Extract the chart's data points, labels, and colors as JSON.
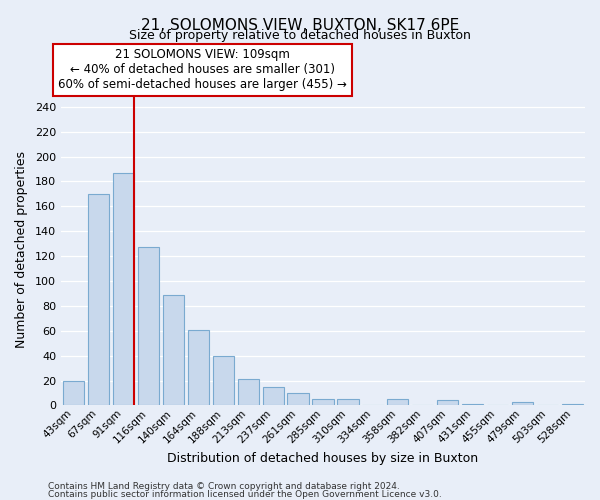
{
  "title": "21, SOLOMONS VIEW, BUXTON, SK17 6PE",
  "subtitle": "Size of property relative to detached houses in Buxton",
  "xlabel": "Distribution of detached houses by size in Buxton",
  "ylabel": "Number of detached properties",
  "bar_color": "#c8d8ec",
  "bar_edge_color": "#7aaad0",
  "categories": [
    "43sqm",
    "67sqm",
    "91sqm",
    "116sqm",
    "140sqm",
    "164sqm",
    "188sqm",
    "213sqm",
    "237sqm",
    "261sqm",
    "285sqm",
    "310sqm",
    "334sqm",
    "358sqm",
    "382sqm",
    "407sqm",
    "431sqm",
    "455sqm",
    "479sqm",
    "503sqm",
    "528sqm"
  ],
  "values": [
    20,
    170,
    187,
    127,
    89,
    61,
    40,
    21,
    15,
    10,
    5,
    5,
    0,
    5,
    0,
    4,
    1,
    0,
    3,
    0,
    1
  ],
  "ylim": [
    0,
    250
  ],
  "yticks": [
    0,
    20,
    40,
    60,
    80,
    100,
    120,
    140,
    160,
    180,
    200,
    220,
    240
  ],
  "vline_after_index": 2,
  "vline_color": "#cc0000",
  "annotation_title": "21 SOLOMONS VIEW: 109sqm",
  "annotation_line1": "← 40% of detached houses are smaller (301)",
  "annotation_line2": "60% of semi-detached houses are larger (455) →",
  "annotation_box_facecolor": "#ffffff",
  "annotation_box_edgecolor": "#cc0000",
  "footer1": "Contains HM Land Registry data © Crown copyright and database right 2024.",
  "footer2": "Contains public sector information licensed under the Open Government Licence v3.0.",
  "background_color": "#e8eef8"
}
